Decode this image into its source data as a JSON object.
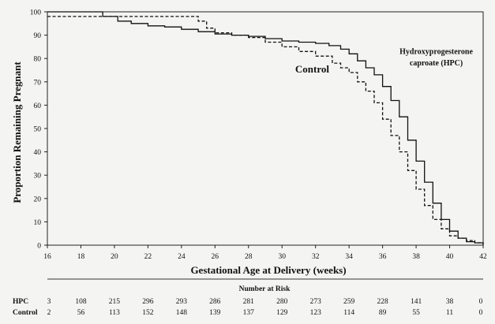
{
  "chart_data": {
    "type": "line",
    "xlabel": "Gestational Age at Delivery (weeks)",
    "ylabel": "Proportion Remaining Pregnant",
    "xlim": [
      16,
      42
    ],
    "ylim": [
      0,
      100
    ],
    "x_ticks": [
      "16",
      "18",
      "20",
      "22",
      "24",
      "26",
      "28",
      "30",
      "32",
      "34",
      "36",
      "38",
      "40",
      "42"
    ],
    "y_ticks": [
      "0",
      "10",
      "20",
      "30",
      "40",
      "50",
      "60",
      "70",
      "80",
      "90",
      "100"
    ],
    "grid": false,
    "series": [
      {
        "name": "Hydroxyprogesterone caproate (HPC)",
        "style": "solid",
        "color": "#111111",
        "x": [
          16,
          18.5,
          19.3,
          20.2,
          21,
          22,
          23,
          24,
          25,
          26,
          27,
          28,
          29,
          30,
          31,
          32,
          32.8,
          33.5,
          34,
          34.5,
          35,
          35.5,
          36,
          36.5,
          37,
          37.5,
          38,
          38.5,
          39,
          39.5,
          40,
          40.5,
          41,
          41.5,
          42
        ],
        "values": [
          100,
          100,
          98,
          96,
          95,
          94,
          93.5,
          92.5,
          91.5,
          90.5,
          90,
          89.5,
          88.5,
          87.5,
          87,
          86.5,
          85.5,
          84,
          82,
          79,
          76,
          73,
          68,
          62,
          55,
          45,
          36,
          27,
          18,
          11,
          6,
          3,
          1.5,
          1,
          0.5
        ]
      },
      {
        "name": "Control",
        "style": "dashed",
        "color": "#111111",
        "x": [
          16,
          16.5,
          18,
          20,
          22,
          24,
          25,
          25.5,
          26,
          27,
          28,
          29,
          30,
          31,
          32,
          33,
          33.5,
          34,
          34.5,
          35,
          35.5,
          36,
          36.5,
          37,
          37.5,
          38,
          38.5,
          39,
          39.5,
          40,
          40.5,
          41,
          41.5,
          42
        ],
        "values": [
          98,
          98,
          98,
          98,
          98,
          98,
          96,
          93,
          91,
          90,
          89,
          87,
          85,
          83,
          81,
          78,
          76,
          74,
          70,
          66,
          61,
          54,
          47,
          40,
          32,
          24,
          17,
          11,
          7,
          4,
          3,
          2,
          1,
          0
        ]
      }
    ],
    "annotations": [
      {
        "text": "Control",
        "x": 31.8,
        "y": 74,
        "size": 13
      },
      {
        "text": "Hydroxyprogesterone",
        "x": 39.2,
        "y": 82,
        "size": 10
      },
      {
        "text": "caproate (HPC)",
        "x": 39.2,
        "y": 77,
        "size": 10
      }
    ],
    "risk_table": {
      "title": "Number at Risk",
      "rows": [
        {
          "label": "HPC",
          "values": [
            "3",
            "108",
            "215",
            "296",
            "293",
            "286",
            "281",
            "280",
            "273",
            "259",
            "228",
            "141",
            "38",
            "0"
          ]
        },
        {
          "label": "Control",
          "values": [
            "2",
            "56",
            "113",
            "152",
            "148",
            "139",
            "137",
            "129",
            "123",
            "114",
            "89",
            "55",
            "11",
            "0"
          ]
        }
      ]
    }
  }
}
